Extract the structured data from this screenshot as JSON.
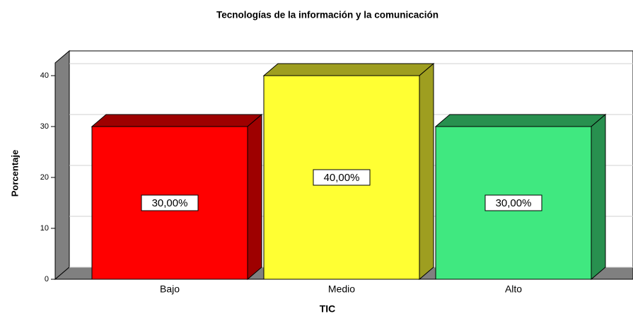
{
  "chart_data": {
    "type": "bar3d",
    "title": "Tecnologías de la información y la comunicación",
    "x_label": "TIC",
    "y_label": "Porcentaje",
    "categories": [
      "Bajo",
      "Medio",
      "Alto"
    ],
    "values": [
      30,
      40,
      30
    ],
    "value_labels": [
      "30,00%",
      "40,00%",
      "30,00%"
    ],
    "colors": [
      "#ff0000",
      "#ffff33",
      "#40e880"
    ],
    "ylim": [
      0,
      42.5
    ],
    "yticks": [
      0,
      10,
      20,
      30,
      40
    ],
    "grid": true
  }
}
